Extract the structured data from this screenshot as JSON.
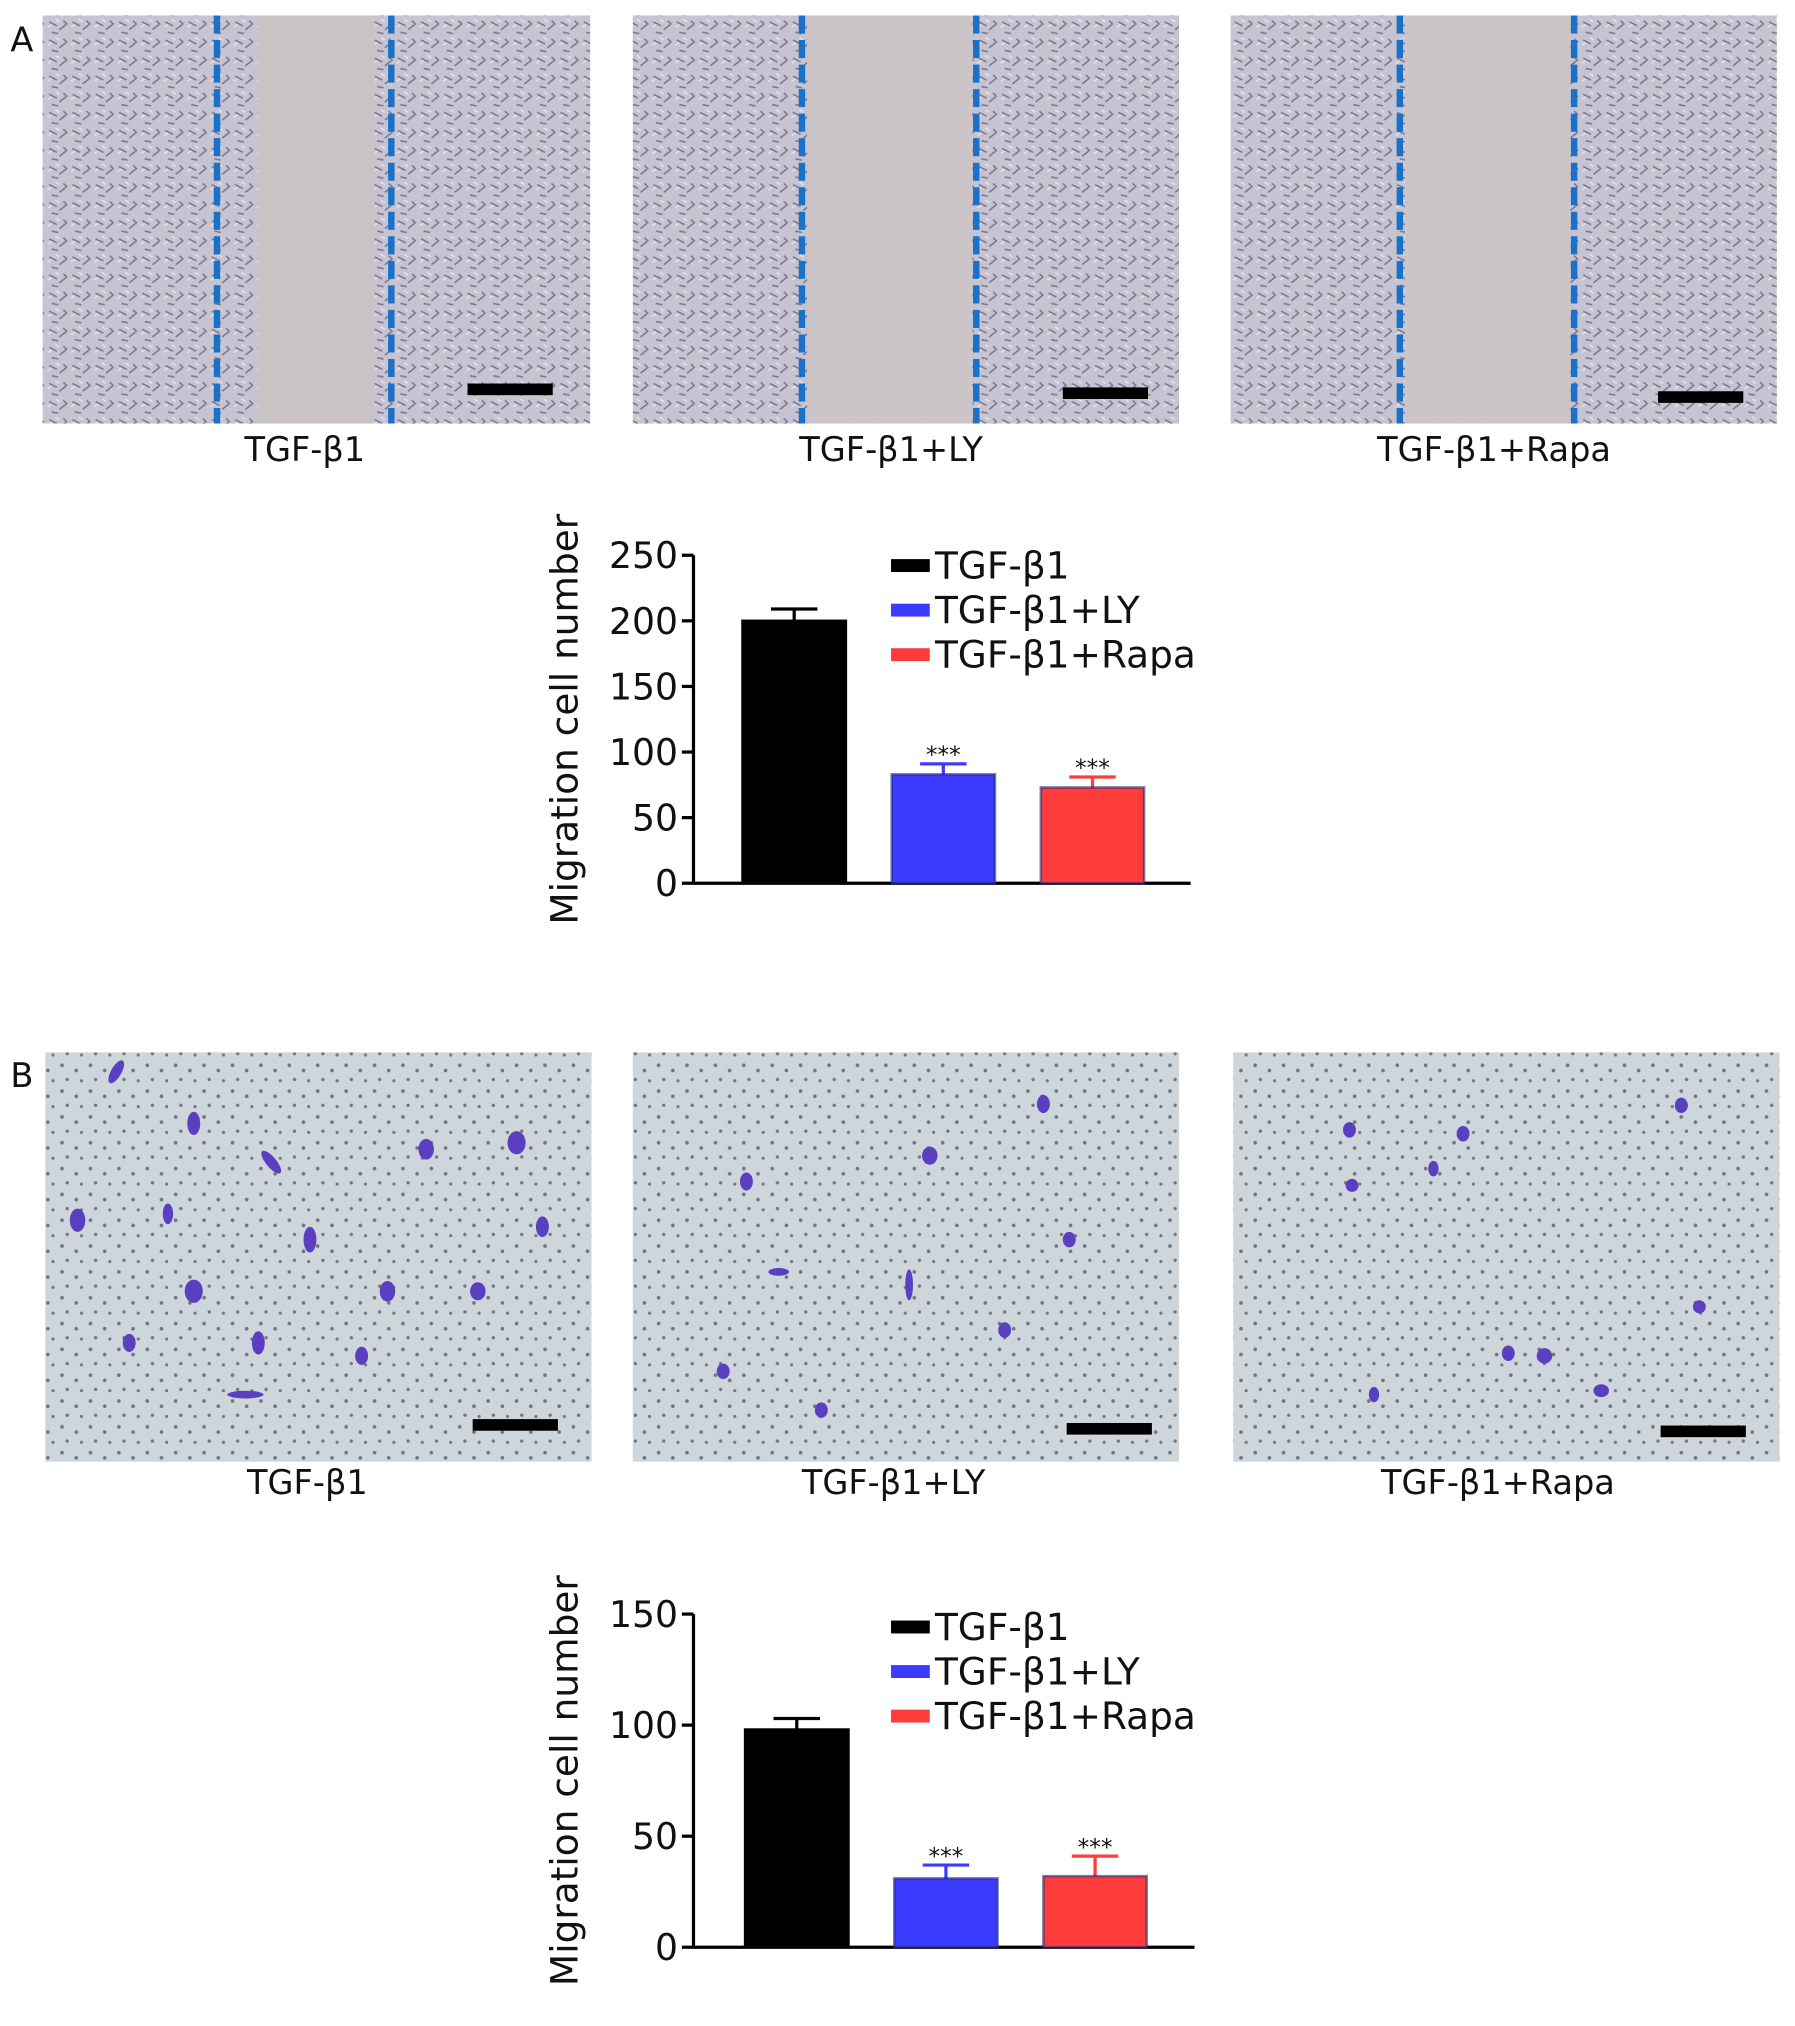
{
  "panels": [
    {
      "label": "A",
      "captions": [
        "TGF-β1",
        "TGF-β1+LY",
        "TGF-β1+Rapa"
      ]
    },
    {
      "label": "B",
      "captions": [
        "TGF-β1",
        "TGF-β1+LY",
        "TGF-β1+Rapa"
      ]
    }
  ],
  "chart_data": [
    {
      "type": "bar",
      "y_label": "Migration cell number",
      "ylim": [
        0,
        250
      ],
      "yticks": [
        0,
        50,
        100,
        150,
        200,
        250
      ],
      "series": [
        {
          "name": "TGF-β1",
          "color": "#000000",
          "values": [
            200
          ],
          "errors": [
            9
          ]
        },
        {
          "name": "TGF-β1+LY",
          "color": "#3b3bff",
          "values": [
            83
          ],
          "errors": [
            8
          ],
          "annotation": "***"
        },
        {
          "name": "TGF-β1+Rapa",
          "color": "#ff3b3b",
          "values": [
            73
          ],
          "errors": [
            8
          ],
          "annotation": "***"
        }
      ]
    },
    {
      "type": "bar",
      "y_label": "Migration cell number",
      "ylim": [
        0,
        150
      ],
      "yticks": [
        0,
        50,
        100,
        150
      ],
      "series": [
        {
          "name": "TGF-β1",
          "color": "#000000",
          "values": [
            98
          ],
          "errors": [
            5
          ]
        },
        {
          "name": "TGF-β1+LY",
          "color": "#3b3bff",
          "values": [
            31
          ],
          "errors": [
            6
          ],
          "annotation": "***"
        },
        {
          "name": "TGF-β1+Rapa",
          "color": "#ff3b3b",
          "values": [
            32
          ],
          "errors": [
            9
          ],
          "annotation": "***"
        }
      ]
    }
  ]
}
